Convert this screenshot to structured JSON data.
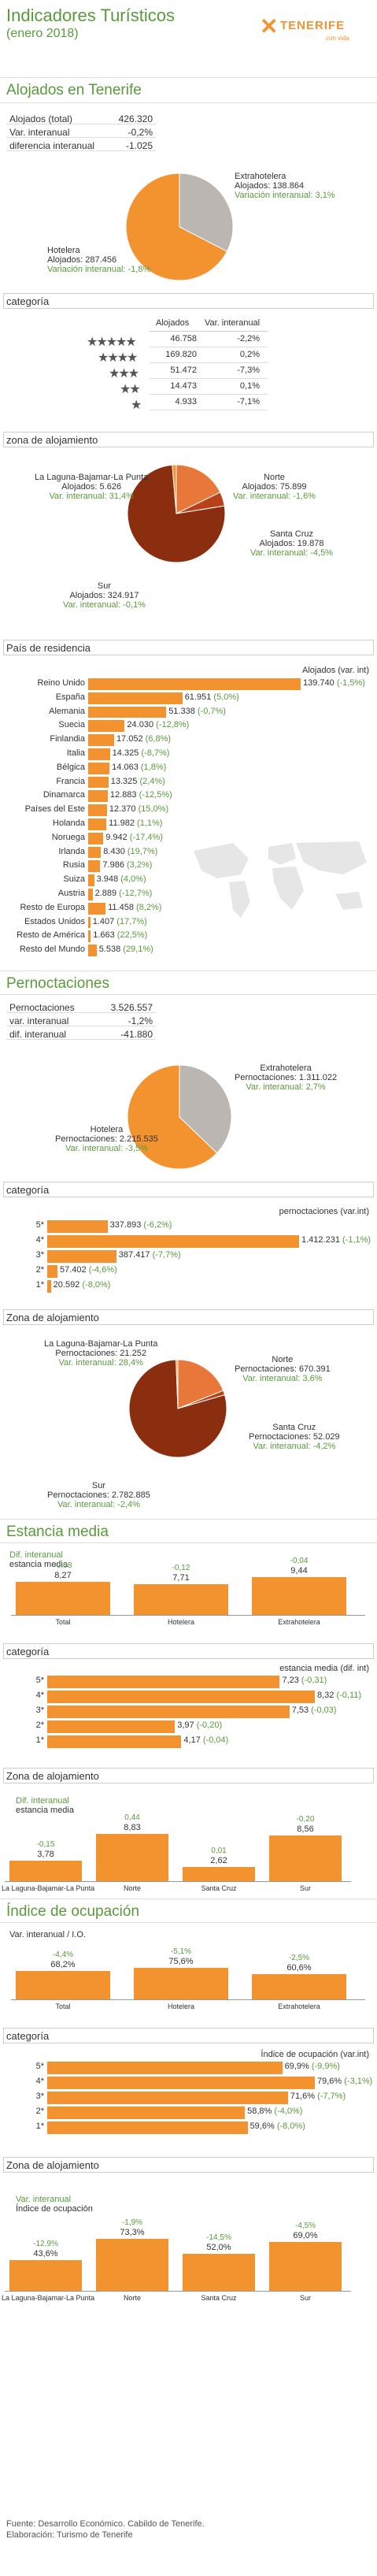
{
  "title": "Indicadores Turísticos",
  "subtitle": "(enero 2018)",
  "logo": {
    "brand": "TENERIFE",
    "tag": "con vida"
  },
  "alojados": {
    "heading": "Alojados en Tenerife",
    "rows": [
      {
        "k": "Alojados  (total)",
        "v": "426.320"
      },
      {
        "k": "Var. interanual",
        "v": "-0,2%"
      },
      {
        "k": "diferencia interanual",
        "v": "-1.025"
      }
    ],
    "pie": {
      "extra_label": "Extrahotelera",
      "extra_line": "Alojados: 138.864",
      "extra_var": "Variación interanual: 3,1%",
      "hotel_label": "Hotelera",
      "hotel_line": "Alojados: 287.456",
      "hotel_var": "Variación interanual: -1,8%"
    },
    "categoria_title": "categoría",
    "cat_headers": [
      "Alojados",
      "Var. interanual"
    ],
    "cat_rows": [
      {
        "stars": "★★★★★",
        "val": "46.758",
        "var": "-2,2%"
      },
      {
        "stars": "★★★★",
        "val": "169.820",
        "var": "0,2%"
      },
      {
        "stars": "★★★",
        "val": "51.472",
        "var": "-7,3%"
      },
      {
        "stars": "★★",
        "val": "14.473",
        "var": "0,1%"
      },
      {
        "stars": "★",
        "val": "4.933",
        "var": "-7,1%"
      }
    ],
    "zona_title": "zona de alojamiento",
    "zona": {
      "laguna_title": "La Laguna-Bajamar-La Punta",
      "laguna_line": "Alojados: 5.626",
      "laguna_var": "Var. interanual: 31,4%",
      "norte_title": "Norte",
      "norte_line": "Alojados: 75.899",
      "norte_var": "Var. interanual: -1,6%",
      "santa_title": "Santa Cruz",
      "santa_line": "Alojados: 19.878",
      "santa_var": "Var. interanual: -4,5%",
      "sur_title": "Sur",
      "sur_line": "Alojados: 324.917",
      "sur_var": "Var. interanual: -0,1%"
    },
    "pais_title": "País de residencia",
    "pais_axis": "Alojados (var. int)",
    "paises": [
      {
        "name": "Reino Unido",
        "v": 139740,
        "label": "139.740 (-1,5%)"
      },
      {
        "name": "España",
        "v": 61951,
        "label": "61.951 (5,0%)"
      },
      {
        "name": "Alemania",
        "v": 51338,
        "label": "51.338 (-0,7%)"
      },
      {
        "name": "Suecia",
        "v": 24030,
        "label": "24.030 (-12,8%)"
      },
      {
        "name": "Finlandia",
        "v": 17052,
        "label": "17.052 (6,8%)"
      },
      {
        "name": "Italia",
        "v": 14325,
        "label": "14.325 (-8,7%)"
      },
      {
        "name": "Bélgica",
        "v": 14063,
        "label": "14.063 (1,8%)"
      },
      {
        "name": "Francia",
        "v": 13325,
        "label": "13.325 (2,4%)"
      },
      {
        "name": "Dinamarca",
        "v": 12883,
        "label": "12.883 (-12,5%)"
      },
      {
        "name": "Países del Este",
        "v": 12370,
        "label": "12.370 (15,0%)"
      },
      {
        "name": "Holanda",
        "v": 11982,
        "label": "11.982 (1,1%)"
      },
      {
        "name": "Noruega",
        "v": 9942,
        "label": "9.942 (-17,4%)"
      },
      {
        "name": "Irlanda",
        "v": 8430,
        "label": "8.430 (19,7%)"
      },
      {
        "name": "Rusia",
        "v": 7986,
        "label": "7.986 (3,2%)"
      },
      {
        "name": "Suiza",
        "v": 3948,
        "label": "3.948 (4,0%)"
      },
      {
        "name": "Austria",
        "v": 2889,
        "label": "2.889 (-12,7%)"
      },
      {
        "name": "Resto de Europa",
        "v": 11458,
        "label": "11.458 (8,2%)"
      },
      {
        "name": "Estados Unidos",
        "v": 1407,
        "label": "1.407 (17,7%)"
      },
      {
        "name": "Resto de América",
        "v": 1663,
        "label": "1.663 (22,5%)"
      },
      {
        "name": "Resto del Mundo",
        "v": 5538,
        "label": "5.538 (29,1%)"
      }
    ]
  },
  "pernoctaciones": {
    "heading": "Pernoctaciones",
    "rows": [
      {
        "k": "Pernoctaciones",
        "v": "3.526.557"
      },
      {
        "k": "var. interanual",
        "v": "-1,2%"
      },
      {
        "k": "dif. interanual",
        "v": "-41.880"
      }
    ],
    "pie": {
      "extra_label": "Extrahotelera",
      "extra_line": "Pernoctaciones: 1.311.022",
      "extra_var": "Var. interanual: 2,7%",
      "hotel_label": "Hotelera",
      "hotel_line": "Pernoctaciones: 2.215.535",
      "hotel_var": "Var. interanual: -3,5%"
    },
    "categoria_title": "categoría",
    "cat_axis": "pernoctaciones (var.int)",
    "cats": [
      {
        "name": "5*",
        "v": 337893,
        "label": "337.893 (-6,2%)"
      },
      {
        "name": "4*",
        "v": 1412231,
        "label": "1.412.231 (-1,1%)"
      },
      {
        "name": "3*",
        "v": 387417,
        "label": "387.417 (-7,7%)"
      },
      {
        "name": "2*",
        "v": 57402,
        "label": "57.402 (-4,6%)"
      },
      {
        "name": "1*",
        "v": 20592,
        "label": "20.592 (-8,0%)"
      }
    ],
    "zona_title": "Zona de alojamiento",
    "zona": {
      "laguna_title": "La Laguna-Bajamar-La Punta",
      "laguna_line": "Pernoctaciones: 21.252",
      "laguna_var": "Var. interanual: 28,4%",
      "norte_title": "Norte",
      "norte_line": "Pernoctaciones: 670.391",
      "norte_var": "Var. interanual: 3,6%",
      "santa_title": "Santa Cruz",
      "santa_line": "Pernoctaciones: 52.029",
      "santa_var": "Var. interanual: -4,2%",
      "sur_title": "Sur",
      "sur_line": "Pernoctaciones: 2.782.885",
      "sur_var": "Var. interanual: -2,4%"
    }
  },
  "estancia": {
    "heading": "Estancia media",
    "legend": [
      "Dif. interanual",
      "estancia media"
    ],
    "cols": [
      {
        "name": "Total",
        "v": 8.27,
        "label": "8,27",
        "diff": "-0,08"
      },
      {
        "name": "Hotelera",
        "v": 7.71,
        "label": "7,71",
        "diff": "-0,12"
      },
      {
        "name": "Extrahotelera",
        "v": 9.44,
        "label": "9,44",
        "diff": "-0,04"
      }
    ],
    "categoria_title": "categoría",
    "cat_axis": "estancia media (dif. int)",
    "cats": [
      {
        "name": "5*",
        "v": 7.23,
        "label": "7,23 (-0,31)"
      },
      {
        "name": "4*",
        "v": 8.32,
        "label": "8,32 (-0,11)"
      },
      {
        "name": "3*",
        "v": 7.53,
        "label": "7,53 (-0,03)"
      },
      {
        "name": "2*",
        "v": 3.97,
        "label": "3,97 (-0,20)"
      },
      {
        "name": "1*",
        "v": 4.17,
        "label": "4,17 (-0,04)"
      }
    ],
    "zona_title": "Zona de alojamiento",
    "zona_legend": [
      "Dif. interanual",
      "estancia media"
    ],
    "zonas": [
      {
        "name": "La Laguna-Bajamar-La Punta",
        "v": 3.78,
        "label": "3,78",
        "diff": "-0,15"
      },
      {
        "name": "Norte",
        "v": 8.83,
        "label": "8,83",
        "diff": "0,44"
      },
      {
        "name": "Santa Cruz",
        "v": 2.62,
        "label": "2,62",
        "diff": "0,01"
      },
      {
        "name": "Sur",
        "v": 8.56,
        "label": "8,56",
        "diff": "-0,20"
      }
    ]
  },
  "ocupacion": {
    "heading": "Índice de ocupación",
    "legend": "Var. interanual / I.O.",
    "cols": [
      {
        "name": "Total",
        "v": 68.2,
        "label": "68,2%",
        "diff": "-4,4%"
      },
      {
        "name": "Hotelera",
        "v": 75.6,
        "label": "75,6%",
        "diff": "-5,1%"
      },
      {
        "name": "Extrahotelera",
        "v": 60.6,
        "label": "60,6%",
        "diff": "-2,5%"
      }
    ],
    "categoria_title": "categoría",
    "cat_axis": "Índice de ocupación (var.int)",
    "cats": [
      {
        "name": "5*",
        "v": 69.9,
        "label": "69,9% (-9,9%)"
      },
      {
        "name": "4*",
        "v": 79.6,
        "label": "79,6% (-3,1%)"
      },
      {
        "name": "3*",
        "v": 71.6,
        "label": "71,6% (-7,7%)"
      },
      {
        "name": "2*",
        "v": 58.8,
        "label": "58,8% (-4,0%)"
      },
      {
        "name": "1*",
        "v": 59.6,
        "label": "59,6% (-8,0%)"
      }
    ],
    "zona_title": "Zona de alojamiento",
    "zona_legend": [
      "Var. interanual",
      "Índice de ocupación"
    ],
    "zonas": [
      {
        "name": "La Laguna-Bajamar-La Punta",
        "v": 43.6,
        "label": "43,6%",
        "diff": "-12,9%"
      },
      {
        "name": "Norte",
        "v": 73.3,
        "label": "73,3%",
        "diff": "-1,9%"
      },
      {
        "name": "Santa Cruz",
        "v": 52.0,
        "label": "52,0%",
        "diff": "-14,5%"
      },
      {
        "name": "Sur",
        "v": 69.0,
        "label": "69,0%",
        "diff": "-4,5%"
      }
    ]
  },
  "footer": [
    "Fuente: Desarrollo Económico. Cabildo de Tenerife.",
    "Elaboración: Turismo de Tenerife"
  ],
  "colors": {
    "orange": "#f39330",
    "green": "#5a9a3c",
    "gray": "#bbb6b2",
    "brown_dark": "#8b2e10",
    "brown": "#b8401a",
    "orange_mid": "#e8783a"
  },
  "chart_data": [
    {
      "type": "pie",
      "title": "Alojados en Tenerife",
      "categories": [
        "Hotelera",
        "Extrahotelera"
      ],
      "values": [
        287456,
        138864
      ]
    },
    {
      "type": "table",
      "title": "categoría",
      "categories": [
        "5 estrellas",
        "4 estrellas",
        "3 estrellas",
        "2 estrellas",
        "1 estrella"
      ],
      "values": [
        46758,
        169820,
        51472,
        14473,
        4933
      ]
    },
    {
      "type": "pie",
      "title": "zona de alojamiento",
      "categories": [
        "Sur",
        "Norte",
        "Santa Cruz",
        "La Laguna-Bajamar-La Punta"
      ],
      "values": [
        324917,
        75899,
        19878,
        5626
      ]
    },
    {
      "type": "bar",
      "title": "País de residencia",
      "xlabel": "Alojados (var. int)",
      "categories": [
        "Reino Unido",
        "España",
        "Alemania",
        "Suecia",
        "Finlandia",
        "Italia",
        "Bélgica",
        "Francia",
        "Dinamarca",
        "Países del Este",
        "Holanda",
        "Noruega",
        "Irlanda",
        "Rusia",
        "Suiza",
        "Austria",
        "Resto de Europa",
        "Estados Unidos",
        "Resto de América",
        "Resto del Mundo"
      ],
      "values": [
        139740,
        61951,
        51338,
        24030,
        17052,
        14325,
        14063,
        13325,
        12883,
        12370,
        11982,
        9942,
        8430,
        7986,
        3948,
        2889,
        11458,
        1407,
        1663,
        5538
      ]
    },
    {
      "type": "pie",
      "title": "Pernoctaciones",
      "categories": [
        "Hotelera",
        "Extrahotelera"
      ],
      "values": [
        2215535,
        1311022
      ]
    },
    {
      "type": "bar",
      "title": "categoría",
      "xlabel": "pernoctaciones (var.int)",
      "categories": [
        "5*",
        "4*",
        "3*",
        "2*",
        "1*"
      ],
      "values": [
        337893,
        1412231,
        387417,
        57402,
        20592
      ]
    },
    {
      "type": "pie",
      "title": "Zona de alojamiento",
      "categories": [
        "Sur",
        "Norte",
        "Santa Cruz",
        "La Laguna-Bajamar-La Punta"
      ],
      "values": [
        2782885,
        670391,
        52029,
        21252
      ]
    },
    {
      "type": "bar",
      "title": "Estancia media",
      "categories": [
        "Total",
        "Hotelera",
        "Extrahotelera"
      ],
      "values": [
        8.27,
        7.71,
        9.44
      ]
    },
    {
      "type": "bar",
      "title": "categoría",
      "xlabel": "estancia media (dif. int)",
      "categories": [
        "5*",
        "4*",
        "3*",
        "2*",
        "1*"
      ],
      "values": [
        7.23,
        8.32,
        7.53,
        3.97,
        4.17
      ]
    },
    {
      "type": "bar",
      "title": "Zona de alojamiento",
      "categories": [
        "La Laguna-Bajamar-La Punta",
        "Norte",
        "Santa Cruz",
        "Sur"
      ],
      "values": [
        3.78,
        8.83,
        2.62,
        8.56
      ]
    },
    {
      "type": "bar",
      "title": "Índice de ocupación",
      "categories": [
        "Total",
        "Hotelera",
        "Extrahotelera"
      ],
      "values": [
        68.2,
        75.6,
        60.6
      ]
    },
    {
      "type": "bar",
      "title": "categoría",
      "xlabel": "Índice de ocupación (var.int)",
      "categories": [
        "5*",
        "4*",
        "3*",
        "2*",
        "1*"
      ],
      "values": [
        69.9,
        79.6,
        71.6,
        58.8,
        59.6
      ]
    },
    {
      "type": "bar",
      "title": "Zona de alojamiento",
      "categories": [
        "La Laguna-Bajamar-La Punta",
        "Norte",
        "Santa Cruz",
        "Sur"
      ],
      "values": [
        43.6,
        73.3,
        52.0,
        69.0
      ]
    }
  ]
}
